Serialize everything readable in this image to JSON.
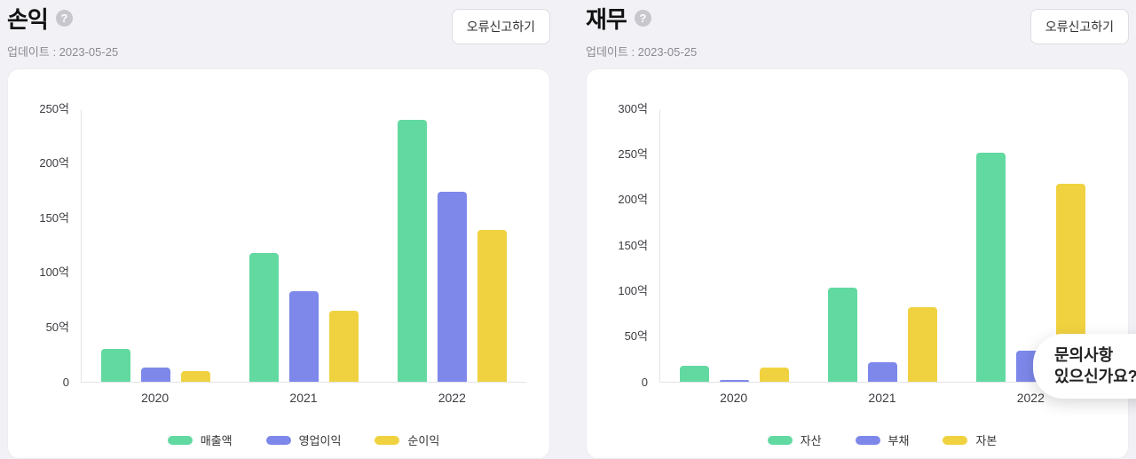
{
  "page": {
    "background": "#f2f2f6"
  },
  "ui": {
    "help_glyph": "?"
  },
  "panels": [
    {
      "title": "손익",
      "updated": "업데이트 : 2023-05-25",
      "report_button": "오류신고하기"
    },
    {
      "title": "재무",
      "updated": "업데이트 : 2023-05-25",
      "report_button": "오류신고하기"
    }
  ],
  "chart_data": [
    {
      "type": "bar",
      "title": "손익",
      "categories": [
        "2020",
        "2021",
        "2022"
      ],
      "series": [
        {
          "name": "매출액",
          "color": "#62d9a1",
          "values": [
            30,
            118,
            240
          ]
        },
        {
          "name": "영업이익",
          "color": "#7d88ea",
          "values": [
            13,
            83,
            174
          ]
        },
        {
          "name": "순이익",
          "color": "#f0d240",
          "values": [
            10,
            65,
            139
          ]
        }
      ],
      "ylim": [
        0,
        250
      ],
      "ytick_step": 50,
      "ytick_suffix": "억",
      "xlabel": "",
      "ylabel": "",
      "grid": false,
      "legend_position": "bottom"
    },
    {
      "type": "bar",
      "title": "재무",
      "categories": [
        "2020",
        "2021",
        "2022"
      ],
      "series": [
        {
          "name": "자산",
          "color": "#62d9a1",
          "values": [
            18,
            104,
            252
          ]
        },
        {
          "name": "부채",
          "color": "#7d88ea",
          "values": [
            2,
            22,
            34
          ]
        },
        {
          "name": "자본",
          "color": "#f0d240",
          "values": [
            16,
            82,
            218
          ]
        }
      ],
      "ylim": [
        0,
        300
      ],
      "ytick_step": 50,
      "ytick_suffix": "억",
      "xlabel": "",
      "ylabel": "",
      "grid": false,
      "legend_position": "bottom"
    }
  ],
  "chat_widget": {
    "line1": "문의사항",
    "line2": "있으신가요?"
  }
}
